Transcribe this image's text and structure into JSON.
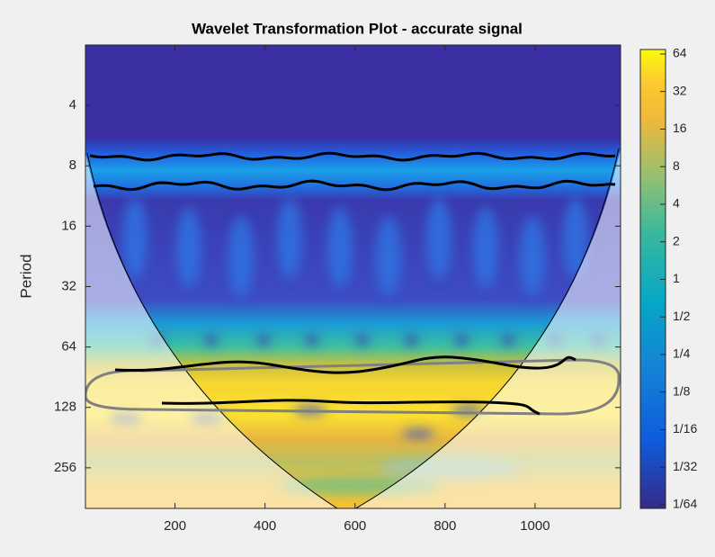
{
  "chart_data": {
    "type": "heatmap",
    "title": "Wavelet Transformation Plot - accurate signal",
    "ylabel": "Period",
    "xlim": [
      1,
      1190
    ],
    "xticks": [
      200,
      400,
      600,
      800,
      1000
    ],
    "ylim": [
      2,
      408
    ],
    "yticks": [
      4,
      8,
      16,
      32,
      64,
      128,
      256
    ],
    "ylog": true,
    "yreversed": true,
    "colorbar": {
      "lim": [
        0.0146,
        69.5
      ],
      "log": true,
      "ticks": [
        64,
        32,
        16,
        8,
        4,
        2,
        1,
        {
          "value": 0.5,
          "label": "1/2"
        },
        {
          "value": 0.25,
          "label": "1/4"
        },
        {
          "value": 0.125,
          "label": "1/8"
        },
        {
          "value": 0.0625,
          "label": "1/16"
        },
        {
          "value": 0.03125,
          "label": "1/32"
        },
        {
          "value": 0.015625,
          "label": "1/64"
        }
      ]
    }
  }
}
